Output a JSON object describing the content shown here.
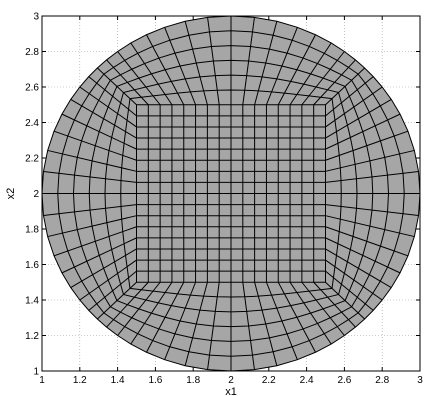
{
  "chart_data": {
    "type": "mesh",
    "title": "",
    "xlabel": "x1",
    "ylabel": "x2",
    "xlim": [
      1,
      3
    ],
    "ylim": [
      1,
      3
    ],
    "grid": true,
    "xticks": [
      "1",
      "1.2",
      "1.4",
      "1.6",
      "1.8",
      "2",
      "2.2",
      "2.4",
      "2.6",
      "2.8",
      "3"
    ],
    "yticks": [
      "1",
      "1.2",
      "1.4",
      "1.6",
      "1.8",
      "2",
      "2.2",
      "2.4",
      "2.6",
      "2.8",
      "3"
    ],
    "domain": {
      "shape": "disk",
      "center": [
        2,
        2
      ],
      "radius": 1,
      "fill_color": "#a6a6a6",
      "edge_color": "#000000"
    },
    "core": {
      "x_range": [
        1.5,
        2.5
      ],
      "y_range": [
        1.5,
        2.5
      ],
      "divisions": 16
    },
    "ring": {
      "radial_layers": 6,
      "tangential_divisions_per_side": 16
    }
  }
}
